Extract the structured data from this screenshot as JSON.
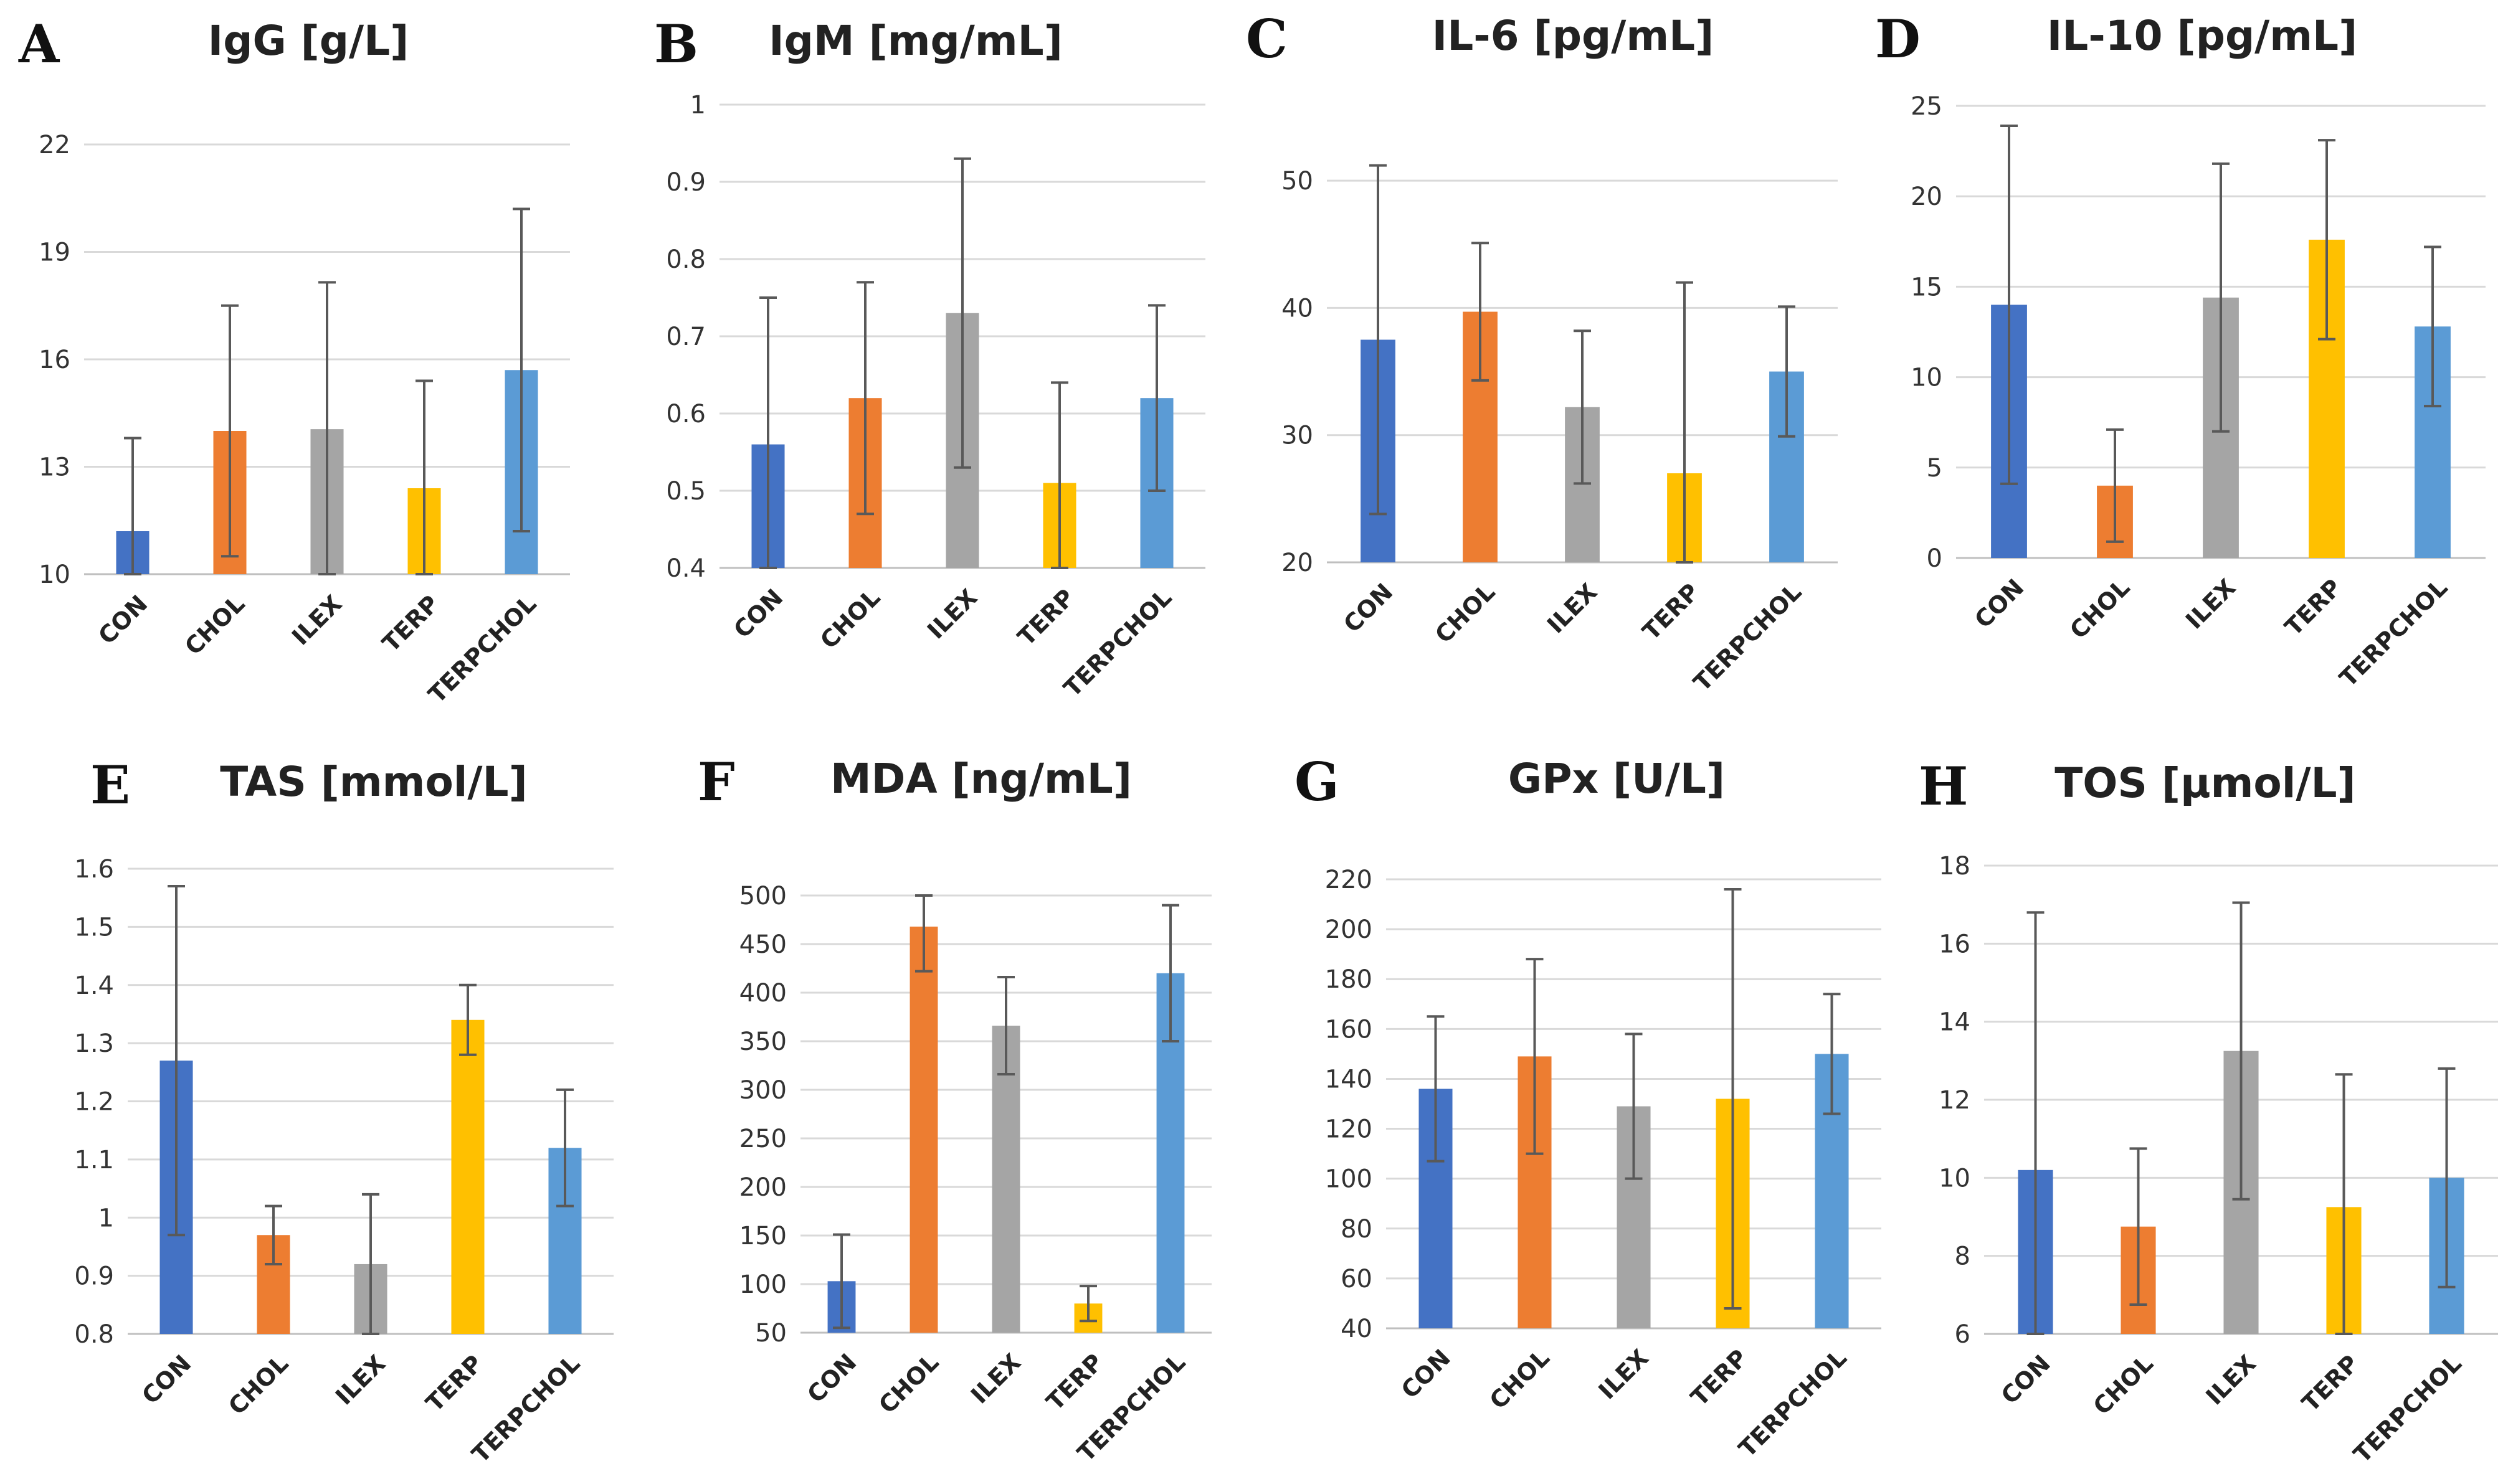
{
  "colors": {
    "CON": "#4472C4",
    "CHOL": "#ED7D31",
    "ILEX": "#A5A5A5",
    "TERP": "#FFC000",
    "TERPCHOL": "#5B9BD5"
  },
  "chart_data": [
    {
      "letter": "A",
      "type": "bar",
      "title": "IgG [g/L]",
      "categories": [
        "CON",
        "CHOL",
        "ILEX",
        "TERP",
        "TERPCHOL"
      ],
      "values": [
        11.2,
        14.0,
        14.05,
        12.4,
        15.7
      ],
      "errors": [
        2.6,
        3.5,
        4.1,
        3.0,
        4.5
      ],
      "ylim": [
        10,
        22
      ],
      "yticks": [
        10,
        13,
        16,
        19,
        22
      ],
      "ytick_labels": [
        "10",
        "13",
        "16",
        "19",
        "22"
      ]
    },
    {
      "letter": "B",
      "type": "bar",
      "title": "IgM [mg/mL]",
      "categories": [
        "CON",
        "CHOL",
        "ILEX",
        "TERP",
        "TERPCHOL"
      ],
      "values": [
        0.56,
        0.62,
        0.73,
        0.51,
        0.62
      ],
      "errors": [
        0.19,
        0.15,
        0.2,
        0.13,
        0.12
      ],
      "ylim": [
        0.4,
        1.0
      ],
      "yticks": [
        0.4,
        0.5,
        0.6,
        0.7,
        0.8,
        0.9,
        1.0
      ],
      "ytick_labels": [
        "0.4",
        "0.5",
        "0.6",
        "0.7",
        "0.8",
        "0.9",
        "1"
      ]
    },
    {
      "letter": "C",
      "type": "bar",
      "title": "IL-6 [pg/mL]",
      "categories": [
        "CON",
        "CHOL",
        "ILEX",
        "TERP",
        "TERPCHOL"
      ],
      "values": [
        37.5,
        39.7,
        32.2,
        27.0,
        35.0
      ],
      "errors": [
        13.7,
        5.4,
        6.0,
        15.0,
        5.1
      ],
      "ylim": [
        20,
        55
      ],
      "yticks": [
        20,
        30,
        40,
        50
      ],
      "ytick_labels": [
        "20",
        "30",
        "40",
        "50"
      ]
    },
    {
      "letter": "D",
      "type": "bar",
      "title": "IL-10 [pg/mL]",
      "categories": [
        "CON",
        "CHOL",
        "ILEX",
        "TERP",
        "TERPCHOL"
      ],
      "values": [
        14.0,
        4.0,
        14.4,
        17.6,
        12.8
      ],
      "errors": [
        9.9,
        3.1,
        7.4,
        5.5,
        4.4
      ],
      "ylim": [
        0,
        25
      ],
      "yticks": [
        0,
        5,
        10,
        15,
        20,
        25
      ],
      "ytick_labels": [
        "0",
        "5",
        "10",
        "15",
        "20",
        "25"
      ]
    },
    {
      "letter": "E",
      "type": "bar",
      "title": "TAS [mmol/L]",
      "categories": [
        "CON",
        "CHOL",
        "ILEX",
        "TERP",
        "TERPCHOL"
      ],
      "values": [
        1.27,
        0.97,
        0.92,
        1.34,
        1.12
      ],
      "errors": [
        0.3,
        0.05,
        0.12,
        0.06,
        0.1
      ],
      "ylim": [
        0.8,
        1.6
      ],
      "yticks": [
        0.8,
        0.9,
        1.0,
        1.1,
        1.2,
        1.3,
        1.4,
        1.5,
        1.6
      ],
      "ytick_labels": [
        "0.8",
        "0.9",
        "1",
        "1.1",
        "1.2",
        "1.3",
        "1.4",
        "1.5",
        "1.6"
      ]
    },
    {
      "letter": "F",
      "type": "bar",
      "title": "MDA [ng/mL]",
      "categories": [
        "CON",
        "CHOL",
        "ILEX",
        "TERP",
        "TERPCHOL"
      ],
      "values": [
        103,
        468,
        366,
        80,
        420
      ],
      "errors": [
        48,
        46,
        50,
        18,
        70
      ],
      "ylim": [
        50,
        500
      ],
      "yticks": [
        50,
        100,
        150,
        200,
        250,
        300,
        350,
        400,
        450,
        500
      ],
      "ytick_labels": [
        "50",
        "100",
        "150",
        "200",
        "250",
        "300",
        "350",
        "400",
        "450",
        "500"
      ]
    },
    {
      "letter": "G",
      "type": "bar",
      "title": "GPx [U/L]",
      "categories": [
        "CON",
        "CHOL",
        "ILEX",
        "TERP",
        "TERPCHOL"
      ],
      "values": [
        136,
        149,
        129,
        132,
        150
      ],
      "errors": [
        29,
        39,
        29,
        84,
        24
      ],
      "ylim": [
        40,
        220
      ],
      "yticks": [
        40,
        60,
        80,
        100,
        120,
        140,
        160,
        180,
        200,
        220
      ],
      "ytick_labels": [
        "40",
        "60",
        "80",
        "100",
        "120",
        "140",
        "160",
        "180",
        "200",
        "220"
      ]
    },
    {
      "letter": "H",
      "type": "bar",
      "title": "TOS [µmol/L]",
      "categories": [
        "CON",
        "CHOL",
        "ILEX",
        "TERP",
        "TERPCHOL"
      ],
      "values": [
        10.2,
        8.75,
        13.25,
        9.25,
        10.0
      ],
      "errors": [
        6.6,
        2.0,
        3.8,
        3.4,
        2.8
      ],
      "ylim": [
        6,
        18
      ],
      "yticks": [
        6,
        8,
        10,
        12,
        14,
        16,
        18
      ],
      "ytick_labels": [
        "6",
        "8",
        "10",
        "12",
        "14",
        "16",
        "18"
      ]
    }
  ]
}
